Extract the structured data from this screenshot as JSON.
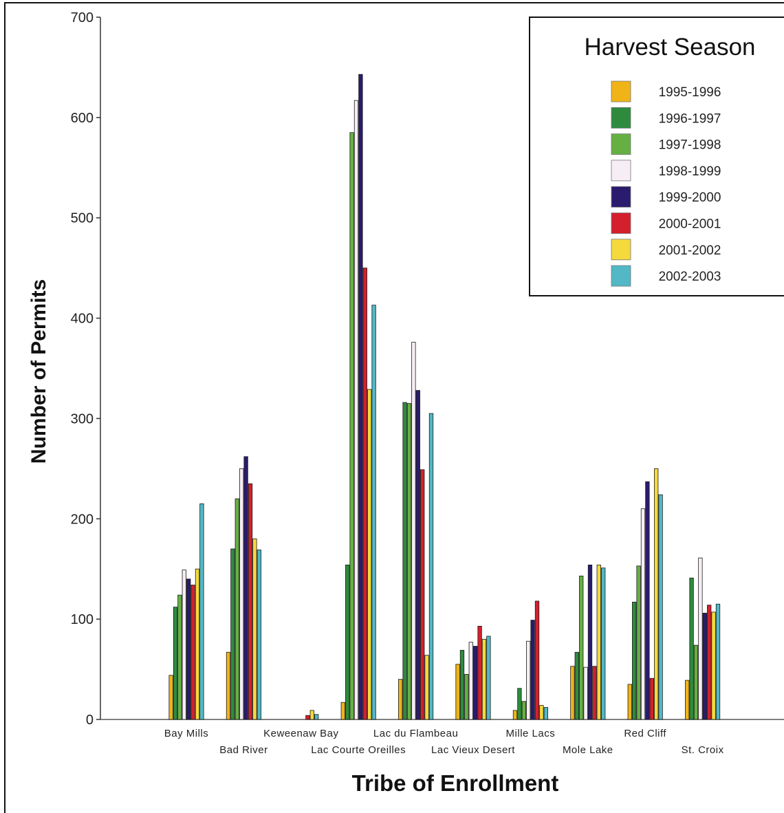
{
  "chart_data": {
    "type": "bar",
    "xlabel": "Tribe of Enrollment",
    "ylabel": "Number of Permits",
    "ylim": [
      0,
      700
    ],
    "yticks": [
      0,
      100,
      200,
      300,
      400,
      500,
      600,
      700
    ],
    "grid": false,
    "legend": {
      "title": "Harvest Season",
      "placement": "top-right"
    },
    "categories": [
      "Bay Mills",
      "Bad River",
      "Keweenaw Bay",
      "Lac Courte Oreilles",
      "Lac du Flambeau",
      "Lac Vieux Desert",
      "Mille Lacs",
      "Mole Lake",
      "Red Cliff",
      "St. Croix"
    ],
    "series": [
      {
        "name": "1995-1996",
        "color": "#f0b418",
        "values": [
          44,
          67,
          0,
          17,
          40,
          55,
          9,
          53,
          35,
          39
        ]
      },
      {
        "name": "1996-1997",
        "color": "#2e8b3e",
        "values": [
          112,
          170,
          0,
          154,
          316,
          69,
          31,
          67,
          117,
          141
        ]
      },
      {
        "name": "1997-1998",
        "color": "#66b043",
        "values": [
          124,
          220,
          0,
          585,
          315,
          45,
          18,
          143,
          153,
          74
        ]
      },
      {
        "name": "1998-1999",
        "color": "#f6eef4",
        "values": [
          149,
          250,
          0,
          617,
          376,
          77,
          78,
          52,
          210,
          161
        ]
      },
      {
        "name": "1999-2000",
        "color": "#2a1b6e",
        "values": [
          140,
          262,
          0,
          643,
          328,
          73,
          99,
          154,
          237,
          106
        ]
      },
      {
        "name": "2000-2001",
        "color": "#d4202c",
        "values": [
          134,
          235,
          4,
          450,
          249,
          93,
          118,
          53,
          41,
          114
        ]
      },
      {
        "name": "2001-2002",
        "color": "#f4da3c",
        "values": [
          150,
          180,
          9,
          329,
          64,
          80,
          14,
          154,
          250,
          107
        ]
      },
      {
        "name": "2002-2003",
        "color": "#52b8c6",
        "values": [
          215,
          169,
          5,
          413,
          305,
          83,
          12,
          151,
          224,
          115
        ]
      }
    ]
  }
}
